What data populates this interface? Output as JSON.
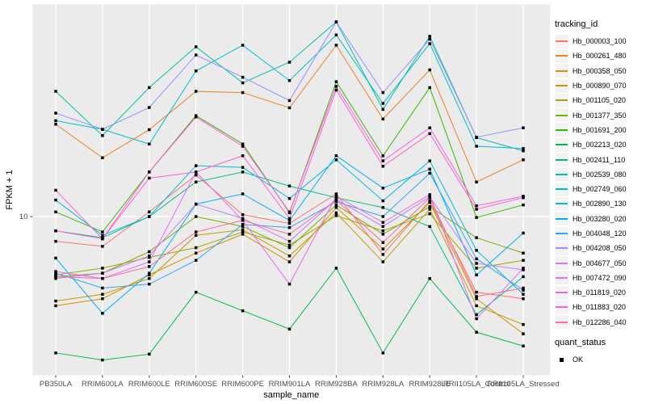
{
  "y_axis": {
    "title": "FPKM + 1",
    "scale": "log10",
    "tick_labels": [
      "10"
    ],
    "tick_values": [
      10
    ]
  },
  "x_axis": {
    "title": "sample_name"
  },
  "legend": {
    "tracking_title": "tracking_id",
    "quant_title": "quant_status",
    "quant_items": [
      {
        "label": "OK",
        "marker": "black-square"
      }
    ]
  },
  "colors": {
    "panel_bg": "#EBEBEB",
    "grid": "#FFFFFF",
    "tick_text": "#4D4D4D",
    "axis_title_text": "#000000",
    "point": "#000000",
    "legend_key_bg": "#F2F2F2"
  },
  "chart_data": {
    "type": "line",
    "title": "",
    "xlabel": "sample_name",
    "ylabel": "FPKM + 1",
    "y_scale": "log10",
    "ylim": [
      1.9,
      95
    ],
    "grid": "major-only",
    "legend_position": "right",
    "point_shape": "black-square",
    "categories": [
      "PB350LA",
      "RRIM600LA",
      "RRIM600LE",
      "RRIM600SE",
      "RRIM600PE",
      "RRIM901LA",
      "RRIM928BA",
      "RRIM928LA",
      "RRIM928LE",
      "RRII105LA_Control",
      "RRII105LA_Stressed"
    ],
    "series": [
      {
        "name": "Hb_000003_100",
        "color": "#F8766D",
        "values": [
          7.7,
          7.3,
          10.5,
          15.5,
          10.2,
          9.3,
          12.7,
          6.7,
          11.8,
          4.5,
          4.2
        ]
      },
      {
        "name": "Hb_000261_480",
        "color": "#E88526",
        "values": [
          26.5,
          18.6,
          25.0,
          37.5,
          37.0,
          31.5,
          61.0,
          28.0,
          47.0,
          14.4,
          18.2
        ]
      },
      {
        "name": "Hb_000358_050",
        "color": "#D89000",
        "values": [
          3.9,
          4.2,
          5.4,
          6.8,
          8.3,
          6.2,
          11.0,
          7.1,
          11.6,
          4.2,
          2.9
        ]
      },
      {
        "name": "Hb_000890_070",
        "color": "#C09B00",
        "values": [
          4.1,
          4.4,
          5.2,
          8.2,
          8.7,
          6.6,
          10.4,
          6.2,
          10.8,
          3.9,
          3.2
        ]
      },
      {
        "name": "Hb_001105_020",
        "color": "#A3A500",
        "values": [
          5.4,
          5.8,
          6.5,
          7.2,
          8.5,
          7.4,
          10.1,
          8.6,
          10.3,
          5.8,
          6.3
        ]
      },
      {
        "name": "Hb_001377_350",
        "color": "#7CAE00",
        "values": [
          5.3,
          5.5,
          6.9,
          10.0,
          9.0,
          7.2,
          11.3,
          8.3,
          11.1,
          8.0,
          6.8
        ]
      },
      {
        "name": "Hb_001691_200",
        "color": "#39B600",
        "values": [
          10.5,
          8.5,
          16.0,
          29.0,
          21.5,
          10.4,
          41.5,
          19.0,
          39.0,
          9.9,
          11.3
        ]
      },
      {
        "name": "Hb_002213_020",
        "color": "#00BB4E",
        "values": [
          2.37,
          2.2,
          2.34,
          4.5,
          3.7,
          3.05,
          5.8,
          2.37,
          5.2,
          2.95,
          2.55
        ]
      },
      {
        "name": "Hb_002411_110",
        "color": "#00BF7D",
        "values": [
          8.6,
          8.0,
          10.0,
          14.4,
          16.0,
          13.8,
          12.2,
          11.0,
          9.0,
          3.55,
          5.3
        ]
      },
      {
        "name": "Hb_002539_080",
        "color": "#00C1A3",
        "values": [
          37.5,
          23.5,
          39.0,
          60.0,
          41.0,
          51.0,
          78.0,
          31.0,
          67.0,
          23.0,
          20.0
        ]
      },
      {
        "name": "Hb_002749_060",
        "color": "#00BFC4",
        "values": [
          27.5,
          25.1,
          21.5,
          46.5,
          61.0,
          42.0,
          68.0,
          33.0,
          62.0,
          21.0,
          20.5
        ]
      },
      {
        "name": "Hb_002890_130",
        "color": "#00BAE0",
        "values": [
          11.9,
          8.2,
          10.0,
          17.1,
          16.8,
          12.1,
          18.2,
          11.8,
          18.0,
          7.0,
          4.4
        ]
      },
      {
        "name": "Hb_003280_020",
        "color": "#00B0F6",
        "values": [
          6.45,
          3.6,
          5.5,
          11.4,
          12.7,
          9.6,
          19.0,
          13.5,
          16.5,
          5.4,
          8.4
        ]
      },
      {
        "name": "Hb_004048_120",
        "color": "#35A2FF",
        "values": [
          5.5,
          4.7,
          4.9,
          6.3,
          9.2,
          8.9,
          11.7,
          10.0,
          15.8,
          6.4,
          4.6
        ]
      },
      {
        "name": "Hb_004208_050",
        "color": "#9590FF",
        "values": [
          29.8,
          25.1,
          31.6,
          55.0,
          43.5,
          34.0,
          78.0,
          37.0,
          65.0,
          23.1,
          25.5
        ]
      },
      {
        "name": "Hb_004677_050",
        "color": "#C77CFF",
        "values": [
          5.2,
          5.5,
          6.6,
          11.4,
          9.8,
          7.7,
          12.0,
          9.0,
          12.3,
          6.1,
          5.7
        ]
      },
      {
        "name": "Hb_007472_090",
        "color": "#E76BF3",
        "values": [
          5.6,
          5.2,
          6.2,
          16.0,
          9.6,
          4.9,
          12.4,
          9.4,
          12.6,
          3.4,
          5.8
        ]
      },
      {
        "name": "Hb_011819_020",
        "color": "#FA62DB",
        "values": [
          13.2,
          7.9,
          16.0,
          28.6,
          21.0,
          10.5,
          39.5,
          18.0,
          25.5,
          11.2,
          12.4
        ]
      },
      {
        "name": "Hb_011883_020",
        "color": "#FF61CC",
        "values": [
          8.6,
          7.9,
          15.0,
          16.0,
          19.0,
          9.8,
          38.0,
          17.0,
          24.0,
          10.8,
          12.2
        ]
      },
      {
        "name": "Hb_012286_040",
        "color": "#FF6A98",
        "values": [
          5.3,
          5.2,
          5.9,
          8.5,
          9.6,
          8.3,
          11.9,
          7.6,
          12.2,
          4.3,
          4.7
        ]
      }
    ]
  }
}
